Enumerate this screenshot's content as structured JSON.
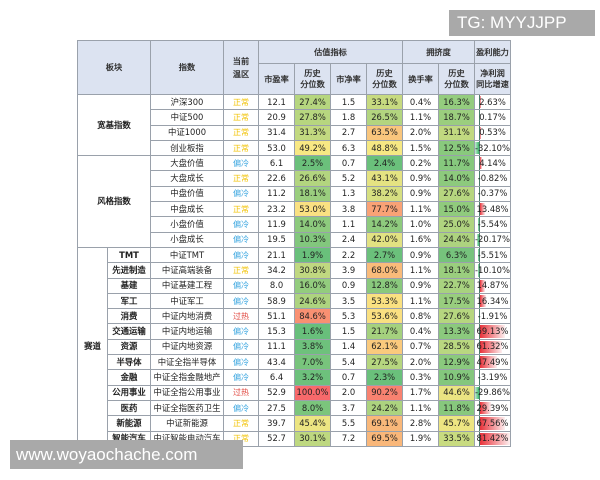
{
  "watermarks": {
    "top_right": "TG: MYYJJPP",
    "bottom_left": "www.woyaochache.com"
  },
  "header": {
    "sector": "板块",
    "index": "指数",
    "zone": "当前温区",
    "zone_line1": "当前",
    "zone_line2": "温区",
    "valuation_group": "估值指标",
    "crowding_group": "拥挤度",
    "profit_group": "盈利能力",
    "pe": "市盈率",
    "pe_pct_line1": "历史",
    "pe_pct_line2": "分位数",
    "pb": "市净率",
    "pb_pct_line1": "历史",
    "pb_pct_line2": "分位数",
    "turnover": "换手率",
    "turnover_pct_line1": "历史",
    "turnover_pct_line2": "分位数",
    "np_line1": "净利润",
    "np_line2": "同比增速"
  },
  "colors": {
    "header_bg": "#dce3f1",
    "zone_normal": "#f2c200",
    "zone_cold": "#3aa6e0",
    "zone_hot": "#e0443c",
    "bar_positive": "#e8323a",
    "bar_negative": "#3cba6c"
  },
  "groups": [
    {
      "name": "宽基指数",
      "rows": [
        {
          "index": "沪深300",
          "zone": "正常",
          "zone_type": "normal",
          "pe": "12.1",
          "pe_pct": "27.4%",
          "pb": "1.5",
          "pb_pct": "33.1%",
          "turnover": "0.4%",
          "turnover_pct": "16.3%",
          "np_growth": "2.63%",
          "np_value": 2.63
        },
        {
          "index": "中证500",
          "zone": "正常",
          "zone_type": "normal",
          "pe": "20.9",
          "pe_pct": "27.8%",
          "pb": "1.8",
          "pb_pct": "26.5%",
          "turnover": "1.1%",
          "turnover_pct": "18.7%",
          "np_growth": "0.17%",
          "np_value": 0.17
        },
        {
          "index": "中证1000",
          "zone": "正常",
          "zone_type": "normal",
          "pe": "31.4",
          "pe_pct": "31.3%",
          "pb": "2.7",
          "pb_pct": "63.5%",
          "turnover": "2.0%",
          "turnover_pct": "31.1%",
          "np_growth": "0.53%",
          "np_value": 0.53
        },
        {
          "index": "创业板指",
          "zone": "正常",
          "zone_type": "normal",
          "pe": "53.0",
          "pe_pct": "49.2%",
          "pb": "6.3",
          "pb_pct": "48.8%",
          "turnover": "1.5%",
          "turnover_pct": "12.5%",
          "np_growth": "-32.10%",
          "np_value": -32.1
        }
      ]
    },
    {
      "name": "风格指数",
      "rows": [
        {
          "index": "大盘价值",
          "zone": "偏冷",
          "zone_type": "cold",
          "pe": "6.1",
          "pe_pct": "2.5%",
          "pb": "0.7",
          "pb_pct": "2.4%",
          "turnover": "0.2%",
          "turnover_pct": "11.7%",
          "np_growth": "4.14%",
          "np_value": 4.14
        },
        {
          "index": "大盘成长",
          "zone": "正常",
          "zone_type": "normal",
          "pe": "22.6",
          "pe_pct": "26.6%",
          "pb": "5.2",
          "pb_pct": "43.1%",
          "turnover": "0.9%",
          "turnover_pct": "14.0%",
          "np_growth": "-0.82%",
          "np_value": -0.82
        },
        {
          "index": "中盘价值",
          "zone": "偏冷",
          "zone_type": "cold",
          "pe": "11.2",
          "pe_pct": "18.1%",
          "pb": "1.3",
          "pb_pct": "38.2%",
          "turnover": "0.9%",
          "turnover_pct": "27.6%",
          "np_growth": "-0.37%",
          "np_value": -0.37
        },
        {
          "index": "中盘成长",
          "zone": "正常",
          "zone_type": "normal",
          "pe": "23.2",
          "pe_pct": "53.0%",
          "pb": "3.8",
          "pb_pct": "77.7%",
          "turnover": "1.1%",
          "turnover_pct": "15.0%",
          "np_growth": "13.48%",
          "np_value": 13.48
        },
        {
          "index": "小盘价值",
          "zone": "偏冷",
          "zone_type": "cold",
          "pe": "11.9",
          "pe_pct": "14.0%",
          "pb": "1.1",
          "pb_pct": "14.2%",
          "turnover": "1.0%",
          "turnover_pct": "25.0%",
          "np_growth": "-5.54%",
          "np_value": -5.54
        },
        {
          "index": "小盘成长",
          "zone": "偏冷",
          "zone_type": "cold",
          "pe": "19.5",
          "pe_pct": "10.3%",
          "pb": "2.4",
          "pb_pct": "42.0%",
          "turnover": "1.6%",
          "turnover_pct": "24.4%",
          "np_growth": "-20.17%",
          "np_value": -20.17
        }
      ]
    },
    {
      "name": "赛道",
      "rows": [
        {
          "sector": "TMT",
          "index": "中证TMT",
          "zone": "偏冷",
          "zone_type": "cold",
          "pe": "21.1",
          "pe_pct": "1.9%",
          "pb": "2.2",
          "pb_pct": "2.7%",
          "turnover": "0.9%",
          "turnover_pct": "6.3%",
          "np_growth": "-5.51%",
          "np_value": -5.51
        },
        {
          "sector": "先进制造",
          "index": "中证高端装备",
          "zone": "正常",
          "zone_type": "normal",
          "pe": "34.2",
          "pe_pct": "30.8%",
          "pb": "3.9",
          "pb_pct": "68.0%",
          "turnover": "1.1%",
          "turnover_pct": "18.1%",
          "np_growth": "-10.10%",
          "np_value": -10.1
        },
        {
          "sector": "基建",
          "index": "中证基建工程",
          "zone": "偏冷",
          "zone_type": "cold",
          "pe": "8.0",
          "pe_pct": "16.0%",
          "pb": "0.9",
          "pb_pct": "12.8%",
          "turnover": "0.9%",
          "turnover_pct": "22.7%",
          "np_growth": "14.87%",
          "np_value": 14.87
        },
        {
          "sector": "军工",
          "index": "中证军工",
          "zone": "偏冷",
          "zone_type": "cold",
          "pe": "58.9",
          "pe_pct": "24.6%",
          "pb": "3.5",
          "pb_pct": "53.3%",
          "turnover": "1.1%",
          "turnover_pct": "17.5%",
          "np_growth": "16.34%",
          "np_value": 16.34
        },
        {
          "sector": "消费",
          "index": "中证内地消费",
          "zone": "过热",
          "zone_type": "hot",
          "pe": "51.1",
          "pe_pct": "84.6%",
          "pb": "5.3",
          "pb_pct": "53.6%",
          "turnover": "0.8%",
          "turnover_pct": "27.6%",
          "np_growth": "-1.91%",
          "np_value": -1.91
        },
        {
          "sector": "交通运输",
          "index": "中证内地运输",
          "zone": "偏冷",
          "zone_type": "cold",
          "pe": "15.3",
          "pe_pct": "1.6%",
          "pb": "1.5",
          "pb_pct": "21.7%",
          "turnover": "0.4%",
          "turnover_pct": "13.3%",
          "np_growth": "69.13%",
          "np_value": 69.13
        },
        {
          "sector": "资源",
          "index": "中证内地资源",
          "zone": "偏冷",
          "zone_type": "cold",
          "pe": "11.1",
          "pe_pct": "3.8%",
          "pb": "1.4",
          "pb_pct": "62.1%",
          "turnover": "0.7%",
          "turnover_pct": "28.5%",
          "np_growth": "61.32%",
          "np_value": 61.32
        },
        {
          "sector": "半导体",
          "index": "中证全指半导体",
          "zone": "偏冷",
          "zone_type": "cold",
          "pe": "43.4",
          "pe_pct": "7.0%",
          "pb": "5.4",
          "pb_pct": "27.5%",
          "turnover": "2.0%",
          "turnover_pct": "12.9%",
          "np_growth": "47.49%",
          "np_value": 47.49
        },
        {
          "sector": "金融",
          "index": "中证全指金融地产",
          "zone": "偏冷",
          "zone_type": "cold",
          "pe": "6.4",
          "pe_pct": "3.2%",
          "pb": "0.7",
          "pb_pct": "2.3%",
          "turnover": "0.3%",
          "turnover_pct": "10.9%",
          "np_growth": "-3.19%",
          "np_value": -3.19
        },
        {
          "sector": "公用事业",
          "index": "中证全指公用事业",
          "zone": "过热",
          "zone_type": "hot",
          "pe": "52.9",
          "pe_pct": "100.0%",
          "pb": "2.0",
          "pb_pct": "90.2%",
          "turnover": "1.7%",
          "turnover_pct": "44.6%",
          "np_growth": "-29.86%",
          "np_value": -29.86
        },
        {
          "sector": "医药",
          "index": "中证全指医药卫生",
          "zone": "偏冷",
          "zone_type": "cold",
          "pe": "27.5",
          "pe_pct": "8.0%",
          "pb": "3.7",
          "pb_pct": "24.2%",
          "turnover": "1.1%",
          "turnover_pct": "11.8%",
          "np_growth": "29.39%",
          "np_value": 29.39
        },
        {
          "sector": "新能源",
          "index": "中证新能源",
          "zone": "正常",
          "zone_type": "normal",
          "pe": "39.7",
          "pe_pct": "45.4%",
          "pb": "5.5",
          "pb_pct": "69.1%",
          "turnover": "2.8%",
          "turnover_pct": "45.7%",
          "np_growth": "67.56%",
          "np_value": 67.56
        },
        {
          "sector": "智能汽车",
          "index": "中证智能电动汽车",
          "zone": "正常",
          "zone_type": "normal",
          "pe": "52.7",
          "pe_pct": "30.1%",
          "pb": "7.2",
          "pb_pct": "69.5%",
          "turnover": "1.9%",
          "turnover_pct": "33.5%",
          "np_growth": "81.42%",
          "np_value": 81.42
        }
      ]
    }
  ]
}
